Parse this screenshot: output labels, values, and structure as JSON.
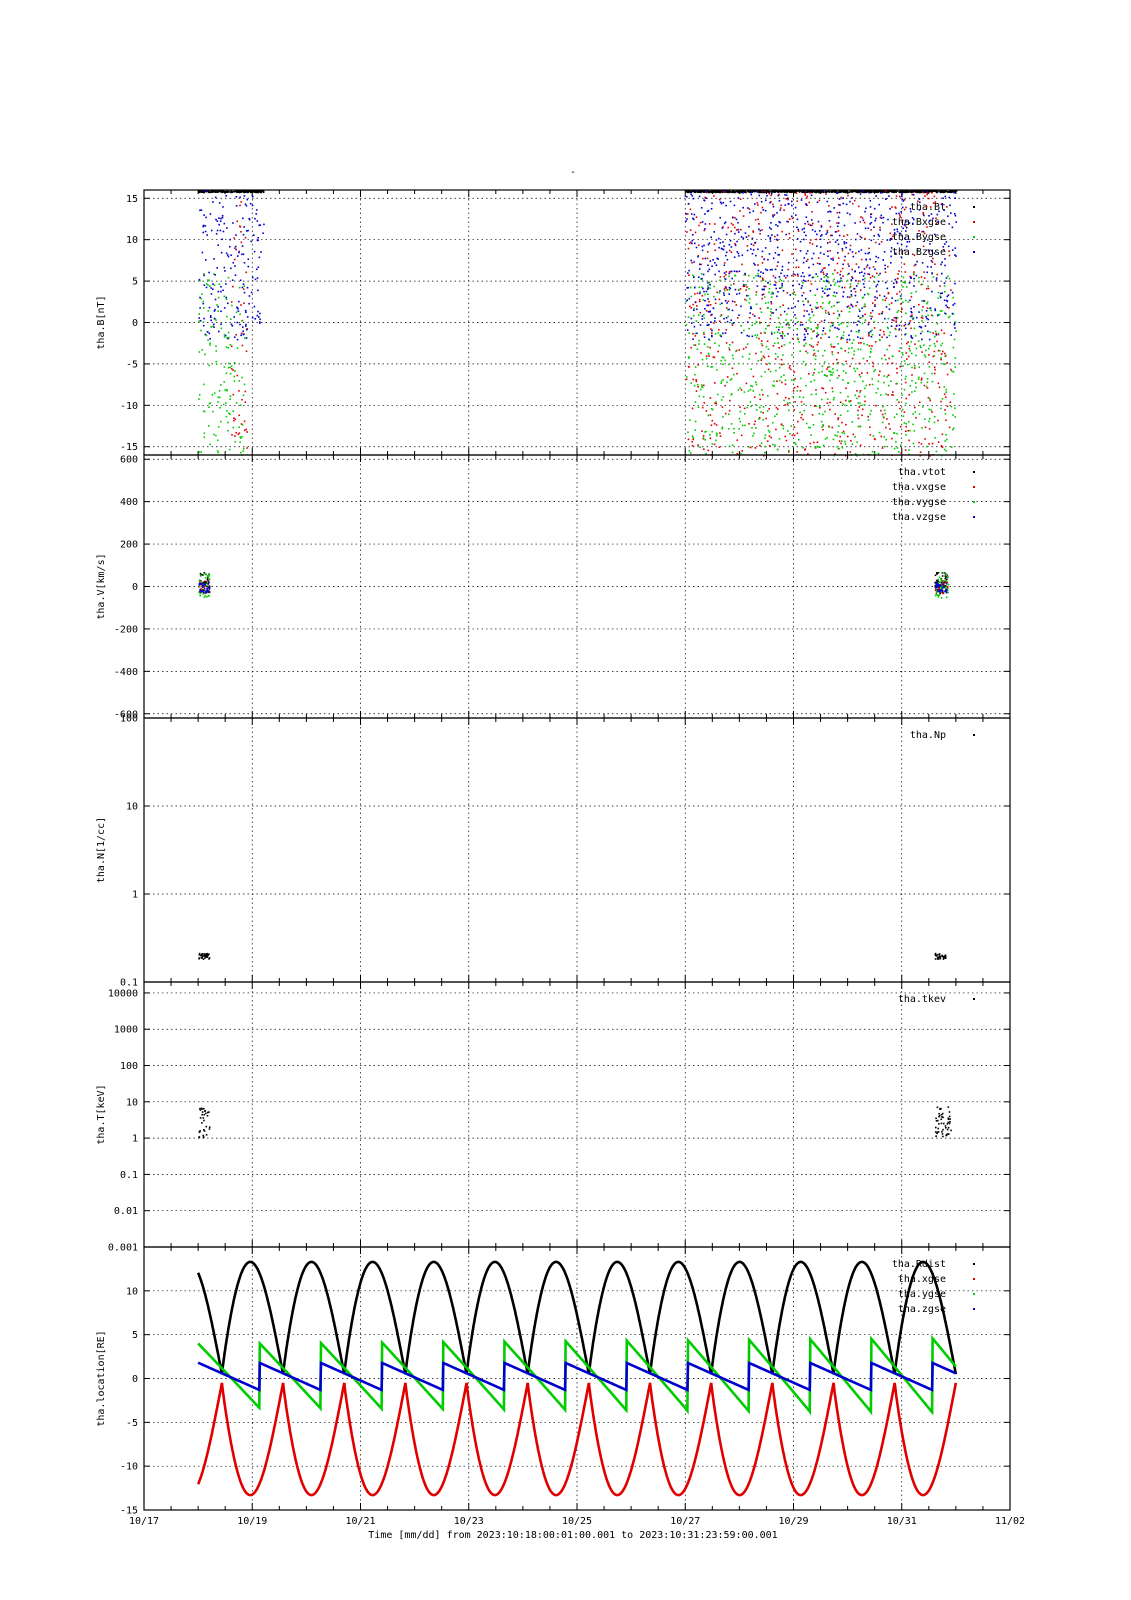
{
  "figure": {
    "title": "-",
    "time_axis": {
      "label": "Time [mm/dd]  from 2023:10:18:00:01:00.001  to  2023:10:31:23:59:00.001",
      "range_days": [
        0,
        16
      ],
      "tick_labels": [
        "10/17",
        "10/19",
        "10/21",
        "10/23",
        "10/25",
        "10/27",
        "10/29",
        "10/31",
        "11/02"
      ]
    },
    "colors": {
      "black": "#000000",
      "red": "#e00000",
      "green": "#00cc00",
      "blue": "#0000cc"
    }
  },
  "chart_data": [
    {
      "type": "scatter",
      "panel": "magnetic-field",
      "ylabel": "tha.B[nT]",
      "ylim": [
        -16,
        16
      ],
      "yticks": [
        "15",
        "10",
        "5",
        "0",
        "-5",
        "-10",
        "-15"
      ],
      "grid": true,
      "legend_placement": "top-right",
      "series": [
        {
          "name": "tha.Bt",
          "color": "#000000",
          "segments": [
            [
              1.0,
              2.2
            ],
            [
              10.0,
              15.0
            ]
          ],
          "level": 15.9,
          "spread": 0.1
        },
        {
          "name": "tha.Bxgse",
          "color": "#e00000",
          "segments": [
            [
              1.6,
              1.9
            ],
            [
              10.0,
              14.9
            ]
          ],
          "level": 0,
          "spread": 16
        },
        {
          "name": "tha.Bygse",
          "color": "#00cc00",
          "segments": [
            [
              1.0,
              1.85
            ],
            [
              10.0,
              15.0
            ]
          ],
          "level": -5,
          "spread": 11
        },
        {
          "name": "tha.Bzgse",
          "color": "#0000cc",
          "segments": [
            [
              1.0,
              2.2
            ],
            [
              10.0,
              15.0
            ]
          ],
          "level": 7,
          "spread": 9
        }
      ]
    },
    {
      "type": "scatter",
      "panel": "velocity",
      "ylabel": "tha.V[km/s]",
      "ylim": [
        -620,
        620
      ],
      "yticks": [
        "600",
        "400",
        "200",
        "0",
        "-200",
        "-400",
        "-600"
      ],
      "grid": true,
      "legend_placement": "top-right",
      "series": [
        {
          "name": "tha.vtot",
          "color": "#000000",
          "segments": [
            [
              1.0,
              1.2
            ],
            [
              14.6,
              14.85
            ]
          ],
          "level": 20,
          "spread": 50
        },
        {
          "name": "tha.vxgse",
          "color": "#e00000",
          "segments": [
            [
              1.0,
              1.2
            ],
            [
              14.6,
              14.85
            ]
          ],
          "level": 0,
          "spread": 30
        },
        {
          "name": "tha.vygse",
          "color": "#00cc00",
          "segments": [
            [
              1.0,
              1.2
            ],
            [
              14.6,
              14.85
            ]
          ],
          "level": 10,
          "spread": 60
        },
        {
          "name": "tha.vzgse",
          "color": "#0000cc",
          "segments": [
            [
              1.0,
              1.2
            ],
            [
              14.6,
              14.85
            ]
          ],
          "level": 0,
          "spread": 25
        }
      ]
    },
    {
      "type": "scatter",
      "panel": "density",
      "ylabel": "tha.N[1/cc]",
      "yscale": "log",
      "ylim": [
        0.1,
        100
      ],
      "yticks": [
        "100",
        "10",
        "1",
        "0.1"
      ],
      "grid": true,
      "legend_placement": "top-right",
      "series": [
        {
          "name": "tha.Np",
          "color": "#000000",
          "segments": [
            [
              1.0,
              1.2
            ],
            [
              14.6,
              14.8
            ]
          ],
          "level": 0.2,
          "spread": 0.1
        }
      ]
    },
    {
      "type": "scatter",
      "panel": "temperature",
      "ylabel": "tha.T[keV]",
      "yscale": "log",
      "ylim": [
        0.001,
        20000
      ],
      "yticks": [
        "10000",
        "1000",
        "100",
        "10",
        "1",
        "0.1",
        "0.01",
        "0.001"
      ],
      "grid": true,
      "legend_placement": "top-right",
      "series": [
        {
          "name": "tha.tkev",
          "color": "#000000",
          "segments": [
            [
              1.0,
              1.2
            ],
            [
              14.6,
              14.9
            ]
          ],
          "level": 3,
          "spread": 2.5
        }
      ]
    },
    {
      "type": "line",
      "panel": "location",
      "ylabel": "tha.location[RE]",
      "ylim": [
        -15,
        15
      ],
      "yticks": [
        "10",
        "5",
        "0",
        "-5",
        "-10",
        "-15"
      ],
      "grid": true,
      "legend_placement": "top-right",
      "x_range_days": [
        1.0,
        15.0
      ],
      "orbit_period_days": 1.13,
      "series": [
        {
          "name": "tha.Rdist",
          "color": "#000000",
          "shape": "apogee",
          "base": 0.5,
          "amplitude": 12.8,
          "phase_day": 1.44
        },
        {
          "name": "tha.xgse",
          "color": "#e00000",
          "shape": "apogee",
          "base": -0.5,
          "amplitude": -12.8,
          "phase_day": 1.44
        },
        {
          "name": "tha.ygse",
          "color": "#00cc00",
          "shape": "sawtooth",
          "from": 4.0,
          "to": -3.3,
          "growth_per_day": 0.12,
          "phase_day": 1.0
        },
        {
          "name": "tha.zgse",
          "color": "#0000cc",
          "shape": "sawtooth",
          "from": 1.8,
          "to": -1.3,
          "growth_per_day": 0,
          "phase_day": 1.0
        }
      ]
    }
  ]
}
